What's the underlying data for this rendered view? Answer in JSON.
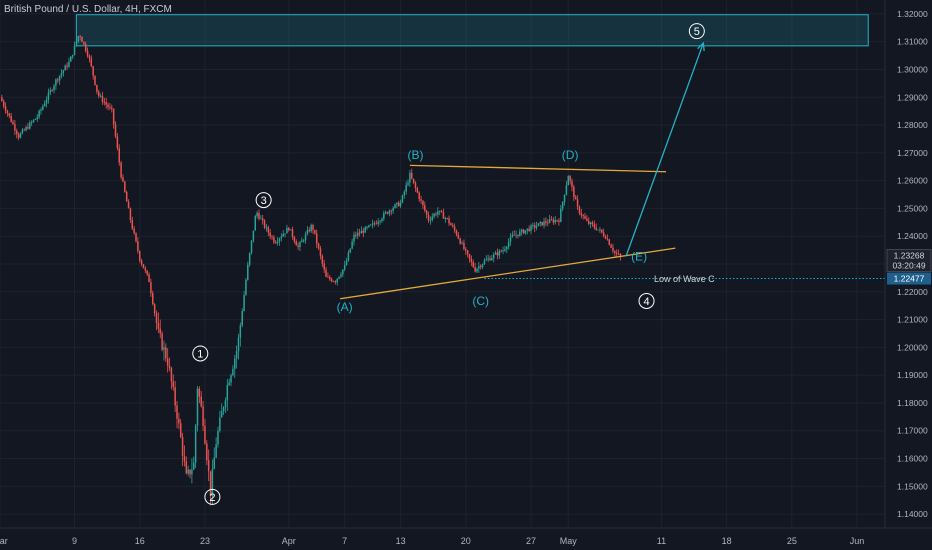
{
  "chart_data": {
    "type": "candlestick",
    "title": "British Pound / U.S. Dollar, 4H, FXCM",
    "colors": {
      "background": "#131722",
      "up": "#26a69a",
      "down": "#ef5350",
      "wave": "#22b3c4",
      "trendline": "#e5a93b",
      "label": "#ffffff",
      "grid": "#1e222d"
    },
    "y_ticks": [
      "1.32000",
      "1.31000",
      "1.30000",
      "1.29000",
      "1.28000",
      "1.27000",
      "1.26000",
      "1.25000",
      "1.24000",
      "1.23000",
      "1.22000",
      "1.21000",
      "1.20000",
      "1.19000",
      "1.18000",
      "1.17000",
      "1.16000",
      "1.15000",
      "1.14000"
    ],
    "ylim": [
      1.135,
      1.325
    ],
    "x_ticks": [
      {
        "label": "Mar",
        "day": 0
      },
      {
        "label": "9",
        "day": 8
      },
      {
        "label": "16",
        "day": 15
      },
      {
        "label": "23",
        "day": 22
      },
      {
        "label": "Apr",
        "day": 31
      },
      {
        "label": "7",
        "day": 37
      },
      {
        "label": "13",
        "day": 43
      },
      {
        "label": "20",
        "day": 50
      },
      {
        "label": "27",
        "day": 57
      },
      {
        "label": "May",
        "day": 61
      },
      {
        "label": "11",
        "day": 71
      },
      {
        "label": "18",
        "day": 78
      },
      {
        "label": "25",
        "day": 85
      },
      {
        "label": "Jun",
        "day": 92
      }
    ],
    "xlim": [
      0,
      95
    ],
    "price_path": [
      [
        0,
        1.29
      ],
      [
        2,
        1.276
      ],
      [
        4,
        1.283
      ],
      [
        6,
        1.296
      ],
      [
        7.5,
        1.303
      ],
      [
        8.5,
        1.313
      ],
      [
        9.5,
        1.305
      ],
      [
        10.5,
        1.291
      ],
      [
        12,
        1.285
      ],
      [
        13,
        1.262
      ],
      [
        14,
        1.246
      ],
      [
        15,
        1.232
      ],
      [
        16,
        1.224
      ],
      [
        17,
        1.205
      ],
      [
        18,
        1.195
      ],
      [
        19,
        1.176
      ],
      [
        19.5,
        1.165
      ],
      [
        20,
        1.153
      ],
      [
        20.8,
        1.158
      ],
      [
        21.2,
        1.186
      ],
      [
        21.8,
        1.174
      ],
      [
        22.3,
        1.158
      ],
      [
        22.6,
        1.148
      ],
      [
        23.2,
        1.166
      ],
      [
        24.5,
        1.188
      ],
      [
        25.5,
        1.2
      ],
      [
        26.5,
        1.227
      ],
      [
        27.5,
        1.249
      ],
      [
        28.5,
        1.243
      ],
      [
        29.5,
        1.238
      ],
      [
        31,
        1.243
      ],
      [
        32,
        1.236
      ],
      [
        33.5,
        1.244
      ],
      [
        35,
        1.225
      ],
      [
        36,
        1.224
      ],
      [
        37,
        1.229
      ],
      [
        38,
        1.24
      ],
      [
        40,
        1.244
      ],
      [
        42,
        1.25
      ],
      [
        43,
        1.252
      ],
      [
        44,
        1.262
      ],
      [
        45,
        1.254
      ],
      [
        46,
        1.246
      ],
      [
        47,
        1.249
      ],
      [
        48,
        1.246
      ],
      [
        49,
        1.241
      ],
      [
        50,
        1.234
      ],
      [
        51,
        1.228
      ],
      [
        52,
        1.231
      ],
      [
        54,
        1.235
      ],
      [
        55,
        1.24
      ],
      [
        57,
        1.243
      ],
      [
        58.5,
        1.245
      ],
      [
        60,
        1.246
      ],
      [
        61,
        1.262
      ],
      [
        62,
        1.25
      ],
      [
        63,
        1.245
      ],
      [
        64,
        1.243
      ],
      [
        65,
        1.24
      ],
      [
        66,
        1.234
      ],
      [
        66.8,
        1.232
      ]
    ],
    "current_price": "1.23268",
    "countdown": "03:20:49",
    "low_wave_c_price": "1.22477",
    "low_wave_c_value": 1.22477,
    "supply_zone": {
      "x0": 8.2,
      "x1": 93.2,
      "y0": 1.3085,
      "y1": 1.3197
    },
    "trendlines": [
      {
        "x0": 44,
        "y0": 1.2655,
        "x1": 71.5,
        "y1": 1.2632
      },
      {
        "x0": 36.5,
        "y0": 1.2175,
        "x1": 72.5,
        "y1": 1.2357
      }
    ],
    "projection": {
      "x0": 67.2,
      "y0": 1.2328,
      "x1": 75.5,
      "y1": 1.3095
    },
    "wave_labels": [
      {
        "text": "(B)",
        "x": 44.6,
        "y": 1.2677,
        "color": "wave"
      },
      {
        "text": "(D)",
        "x": 61.2,
        "y": 1.2677,
        "color": "wave"
      },
      {
        "text": "(A)",
        "x": 37,
        "y": 1.213,
        "color": "wave"
      },
      {
        "text": "(C)",
        "x": 51.6,
        "y": 1.2152,
        "color": "wave"
      },
      {
        "text": "(E)",
        "x": 68.6,
        "y": 1.2313,
        "color": "wave"
      }
    ],
    "circle_labels": [
      {
        "text": "5",
        "x": 74.8,
        "y": 1.3138
      },
      {
        "text": "3",
        "x": 28.3,
        "y": 1.253
      },
      {
        "text": "1",
        "x": 21.5,
        "y": 1.1978
      },
      {
        "text": "2",
        "x": 22.8,
        "y": 1.1462
      },
      {
        "text": "4",
        "x": 69.4,
        "y": 1.2167
      }
    ],
    "annotations": [
      {
        "text": "Low of Wave C",
        "x": 70.2,
        "y": 1.2236
      }
    ]
  }
}
